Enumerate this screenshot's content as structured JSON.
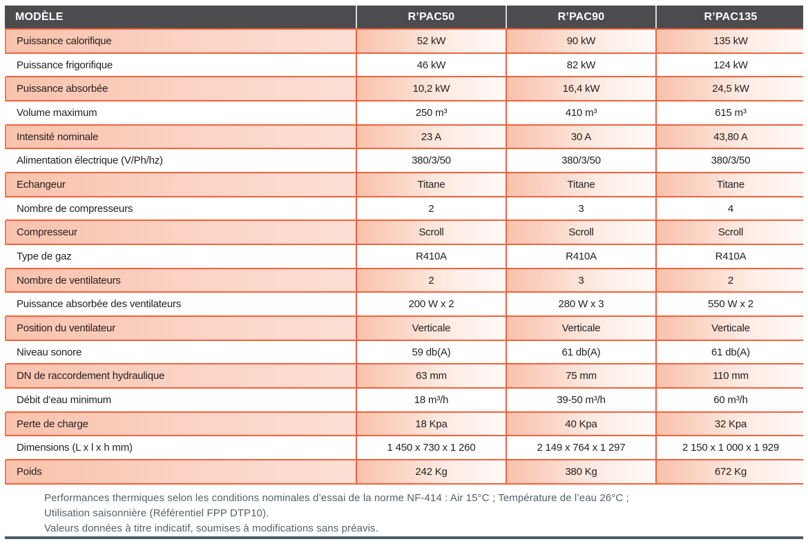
{
  "table": {
    "header": {
      "model_label": "MODÈLE",
      "columns": [
        "R’PAC50",
        "R’PAC90",
        "R’PAC135"
      ]
    },
    "rows": [
      {
        "label": "Puissance calorifique",
        "values": [
          "52 kW",
          "90 kW",
          "135 kW"
        ]
      },
      {
        "label": "Puissance frigorifique",
        "values": [
          "46 kW",
          "82 kW",
          "124 kW"
        ]
      },
      {
        "label": "Puissance absorbée",
        "values": [
          "10,2 kW",
          "16,4 kW",
          "24,5 kW"
        ]
      },
      {
        "label": "Volume maximum",
        "values": [
          "250 m³",
          "410 m³",
          "615 m³"
        ]
      },
      {
        "label": "Intensité nominale",
        "values": [
          "23 A",
          "30 A",
          "43,80 A"
        ]
      },
      {
        "label": "Alimentation électrique (V/Ph/hz)",
        "values": [
          "380/3/50",
          "380/3/50",
          "380/3/50"
        ]
      },
      {
        "label": "Echangeur",
        "values": [
          "Titane",
          "Titane",
          "Titane"
        ]
      },
      {
        "label": "Nombre de compresseurs",
        "values": [
          "2",
          "3",
          "4"
        ]
      },
      {
        "label": "Compresseur",
        "values": [
          "Scroll",
          "Scroll",
          "Scroll"
        ]
      },
      {
        "label": "Type de gaz",
        "values": [
          "R410A",
          "R410A",
          "R410A"
        ]
      },
      {
        "label": "Nombre de ventilateurs",
        "values": [
          "2",
          "3",
          "2"
        ]
      },
      {
        "label": "Puissance absorbée des ventilateurs",
        "values": [
          "200 W x 2",
          "280 W x 3",
          "550 W x 2"
        ]
      },
      {
        "label": "Position du ventilateur",
        "values": [
          "Verticale",
          "Verticale",
          "Verticale"
        ]
      },
      {
        "label": "Niveau sonore",
        "values": [
          "59 db(A)",
          "61 db(A)",
          "61 db(A)"
        ]
      },
      {
        "label": "DN de raccordement hydraulique",
        "values": [
          "63 mm",
          "75 mm",
          "110 mm"
        ]
      },
      {
        "label": "Débit d’eau minimum",
        "values": [
          "18 m³/h",
          "39-50 m³/h",
          "60 m³/h"
        ]
      },
      {
        "label": "Perte de charge",
        "values": [
          "18 Kpa",
          "40 Kpa",
          "32 Kpa"
        ]
      },
      {
        "label": "Dimensions (L x l x h mm)",
        "values": [
          "1 450 x 730 x 1 260",
          "2 149 x 764 x 1 297",
          "2 150 x 1 000 x 1 929"
        ]
      },
      {
        "label": "Poids",
        "values": [
          "242 Kg",
          "380 Kg",
          "672 Kg"
        ]
      }
    ]
  },
  "footnotes": {
    "lines": [
      "Performances thermiques selon les conditions nominales d’essai de la norme NF-414 : Air 15°C ; Température de l’eau 26°C ;",
      "Utilisation saisonnière (Référentiel FPP DTP10).",
      "Valeurs données à titre indicatif, soumises à modifications sans préavis."
    ]
  },
  "colors": {
    "accent_orange": "#F1613B",
    "row_pink_start": "#F9C2AC",
    "header_gray": "#4C4C4E",
    "header_separator": "#D9D9D9",
    "note_text": "#546067",
    "bottom_rule_slate": "#4C5C64"
  }
}
